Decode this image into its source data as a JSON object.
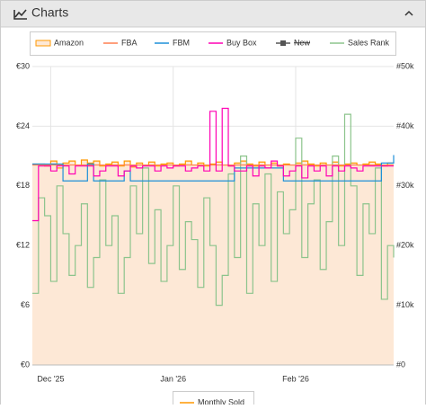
{
  "panel_title": "Charts",
  "chart_data": {
    "type": "line",
    "step": true,
    "categories": [
      null,
      null,
      null,
      "Dec '25",
      null,
      null,
      null,
      null,
      null,
      null,
      null,
      null,
      null,
      null,
      null,
      null,
      null,
      null,
      null,
      null,
      null,
      null,
      null,
      "Jan '26",
      null,
      null,
      null,
      null,
      null,
      null,
      null,
      null,
      null,
      null,
      null,
      null,
      null,
      null,
      null,
      null,
      null,
      null,
      null,
      "Feb '26",
      null,
      null,
      null,
      null,
      null,
      null,
      null,
      null,
      null,
      null,
      null,
      null,
      null,
      null,
      null,
      null
    ],
    "ylim": [
      0,
      30
    ],
    "yticks": [
      {
        "value": 0,
        "label": "€0"
      },
      {
        "value": 6,
        "label": "€6"
      },
      {
        "value": 12,
        "label": "€12"
      },
      {
        "value": 18,
        "label": "€18"
      },
      {
        "value": 24,
        "label": "€24"
      },
      {
        "value": 30,
        "label": "€30"
      }
    ],
    "y2lim": [
      0,
      50000
    ],
    "y2ticks": [
      {
        "value": 0,
        "label": "#0"
      },
      {
        "value": 10000,
        "label": "#10k"
      },
      {
        "value": 20000,
        "label": "#20k"
      },
      {
        "value": 30000,
        "label": "#30k"
      },
      {
        "value": 40000,
        "label": "#40k"
      },
      {
        "value": 50000,
        "label": "#50k"
      }
    ],
    "grid": true,
    "series": [
      {
        "name": "Amazon",
        "color": "#ff9900",
        "area_color": "#fde8d6",
        "values": [
          20.2,
          20.2,
          20.0,
          20.5,
          19.8,
          20.3,
          20.5,
          20.1,
          20.6,
          20.3,
          20.5,
          20.0,
          20.2,
          20.4,
          20.0,
          20.5,
          19.9,
          20.3,
          20.1,
          20.4,
          20.0,
          20.2,
          20.3,
          20.0,
          20.2,
          20.5,
          20.1,
          20.3,
          20.0,
          20.2,
          20.4,
          20.1,
          20.0,
          20.3,
          20.5,
          20.2,
          20.0,
          20.4,
          20.1,
          20.3,
          20.0,
          20.2,
          20.1,
          20.3,
          20.5,
          20.2,
          20.0,
          20.3,
          20.1,
          20.4,
          20.0,
          20.2,
          20.3,
          20.1,
          20.2,
          20.4,
          20.2,
          20.0,
          20.3,
          20.3
        ]
      },
      {
        "name": "FBA",
        "color": "#ff7f50",
        "values": [
          20.1,
          20.1,
          20.1,
          20.1,
          20.1,
          20.1,
          20.1,
          20.1,
          20.1,
          20.1,
          20.1,
          20.1,
          20.1,
          20.1,
          20.1,
          20.1,
          20.1,
          20.1,
          20.1,
          20.1,
          20.1,
          20.1,
          20.1,
          20.1,
          20.1,
          20.1,
          20.1,
          20.1,
          20.1,
          20.1,
          20.1,
          20.1,
          20.1,
          20.1,
          20.1,
          20.1,
          20.1,
          20.1,
          20.1,
          20.1,
          20.1,
          20.1,
          20.1,
          20.1,
          20.1,
          20.1,
          20.1,
          20.1,
          20.1,
          20.1,
          20.1,
          20.1,
          20.1,
          20.1,
          20.1,
          20.1,
          20.1,
          20.1,
          20.1,
          20.1
        ]
      },
      {
        "name": "FBM",
        "color": "#1e90d8",
        "values": [
          20.2,
          20.2,
          20.2,
          20.2,
          20.2,
          18.5,
          18.5,
          18.5,
          18.5,
          20.2,
          18.5,
          18.5,
          18.5,
          18.5,
          18.5,
          19.5,
          18.5,
          18.5,
          18.5,
          18.5,
          18.5,
          18.5,
          18.5,
          18.5,
          18.5,
          18.5,
          18.5,
          18.5,
          18.5,
          18.5,
          18.5,
          18.5,
          18.5,
          19.8,
          19.8,
          19.8,
          19.8,
          19.8,
          19.8,
          19.8,
          19.8,
          18.5,
          18.5,
          18.5,
          18.5,
          18.5,
          18.5,
          18.5,
          18.5,
          18.5,
          18.5,
          18.5,
          18.5,
          18.5,
          18.5,
          18.5,
          18.5,
          20.3,
          20.3,
          21.1
        ]
      },
      {
        "name": "Buy Box",
        "color": "#ff00b4",
        "values": [
          14.5,
          20.0,
          20.0,
          19.5,
          20.0,
          20.0,
          19.2,
          20.0,
          20.0,
          20.0,
          19.0,
          19.5,
          20.0,
          20.0,
          19.0,
          19.5,
          20.0,
          19.8,
          20.0,
          20.0,
          19.5,
          20.0,
          19.8,
          20.0,
          20.0,
          19.5,
          19.8,
          20.0,
          19.5,
          25.5,
          19.5,
          25.8,
          20.0,
          19.5,
          19.5,
          20.0,
          19.0,
          20.0,
          19.8,
          20.5,
          20.0,
          19.0,
          19.5,
          20.0,
          18.8,
          20.0,
          19.5,
          20.0,
          19.0,
          20.0,
          19.5,
          20.0,
          19.8,
          19.5,
          20.0,
          20.0,
          20.0,
          20.0,
          20.0,
          20.0
        ]
      },
      {
        "name": "New",
        "color": "#555555",
        "hidden": true,
        "values": [
          null,
          null,
          null,
          null,
          null,
          null,
          null,
          null,
          null,
          null,
          null,
          null,
          null,
          null,
          null,
          null,
          null,
          null,
          null,
          null,
          null,
          null,
          null,
          null,
          null,
          null,
          null,
          null,
          null,
          null,
          null,
          null,
          null,
          null,
          null,
          null,
          null,
          null,
          null,
          null,
          null,
          null,
          null,
          null,
          null,
          null,
          null,
          null,
          null,
          null,
          null,
          null,
          null,
          null,
          null,
          null,
          null,
          null,
          null,
          null
        ]
      },
      {
        "name": "Sales Rank",
        "color": "#8cc48c",
        "axis": "y2",
        "values": [
          12000,
          28000,
          25000,
          14000,
          30000,
          22000,
          15000,
          20000,
          27000,
          13000,
          18000,
          31000,
          20000,
          25000,
          12000,
          18000,
          30000,
          22000,
          33000,
          17000,
          26000,
          14000,
          20000,
          30000,
          16000,
          24000,
          21000,
          13000,
          28000,
          20000,
          10000,
          15000,
          32000,
          18000,
          35000,
          12000,
          27000,
          20000,
          32000,
          14000,
          29000,
          22000,
          26000,
          38000,
          18000,
          27000,
          31000,
          16000,
          24000,
          35000,
          20000,
          42000,
          30000,
          15000,
          27000,
          22000,
          33000,
          11000,
          20000,
          18000
        ]
      }
    ],
    "sub_legend": [
      "Monthly Sold"
    ]
  }
}
